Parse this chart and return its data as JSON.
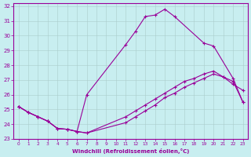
{
  "xlabel": "Windchill (Refroidissement éolien,°C)",
  "xlim": [
    -0.5,
    23.5
  ],
  "ylim": [
    23,
    32.2
  ],
  "yticks": [
    23,
    24,
    25,
    26,
    27,
    28,
    29,
    30,
    31,
    32
  ],
  "xticks": [
    0,
    1,
    2,
    3,
    4,
    5,
    6,
    7,
    8,
    9,
    10,
    11,
    12,
    13,
    14,
    15,
    16,
    17,
    18,
    19,
    20,
    21,
    22,
    23
  ],
  "background_color": "#c8eef0",
  "grid_color": "#aacccc",
  "line_color": "#990099",
  "line1_x": [
    0,
    1,
    2,
    3,
    4,
    5,
    6,
    7,
    11,
    12,
    13,
    14,
    15,
    16,
    17,
    18,
    19,
    20,
    21,
    22,
    23
  ],
  "line1_y": [
    25.2,
    24.8,
    24.5,
    24.2,
    23.7,
    23.65,
    23.5,
    23.4,
    24.5,
    24.9,
    25.3,
    25.7,
    26.1,
    26.5,
    26.9,
    27.1,
    27.4,
    27.6,
    27.2,
    26.7,
    26.3
  ],
  "line2_x": [
    0,
    1,
    2,
    3,
    4,
    5,
    6,
    7,
    11,
    12,
    13,
    14,
    15,
    16,
    19,
    20,
    22,
    23
  ],
  "line2_y": [
    25.2,
    24.8,
    24.5,
    24.2,
    23.7,
    23.65,
    23.5,
    26.0,
    29.4,
    30.3,
    31.3,
    31.4,
    31.8,
    31.3,
    29.5,
    29.3,
    27.1,
    25.5
  ],
  "line3_x": [
    0,
    1,
    2,
    3,
    4,
    5,
    6,
    7,
    11,
    12,
    13,
    14,
    15,
    16,
    17,
    18,
    19,
    20,
    21,
    22,
    23
  ],
  "line3_y": [
    25.2,
    24.8,
    24.5,
    24.2,
    23.7,
    23.65,
    23.5,
    23.4,
    24.1,
    24.5,
    24.9,
    25.3,
    25.8,
    26.1,
    26.5,
    26.8,
    27.1,
    27.4,
    27.2,
    26.9,
    25.5
  ]
}
